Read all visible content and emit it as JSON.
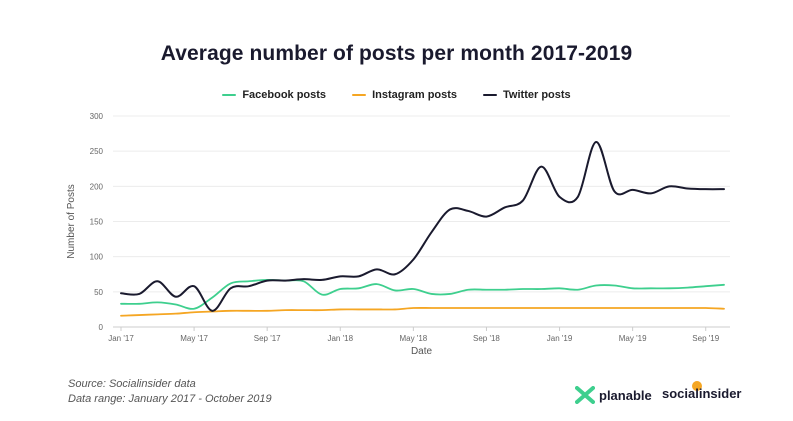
{
  "chart_data": {
    "type": "line",
    "title": "Average number of posts per month 2017-2019",
    "xlabel": "Date",
    "ylabel": "Number of Posts",
    "ylim": [
      0,
      300
    ],
    "yticks": [
      0,
      50,
      100,
      150,
      200,
      250,
      300
    ],
    "xtick_labels": [
      "Jan '17",
      "May '17",
      "Sep '17",
      "Jan '18",
      "May '18",
      "Sep '18",
      "Jan '19",
      "May '19",
      "Sep '19"
    ],
    "grid": "horizontal",
    "legend_position": "top-center",
    "x": [
      "2017-01",
      "2017-02",
      "2017-03",
      "2017-04",
      "2017-05",
      "2017-06",
      "2017-07",
      "2017-08",
      "2017-09",
      "2017-10",
      "2017-11",
      "2017-12",
      "2018-01",
      "2018-02",
      "2018-03",
      "2018-04",
      "2018-05",
      "2018-06",
      "2018-07",
      "2018-08",
      "2018-09",
      "2018-10",
      "2018-11",
      "2018-12",
      "2019-01",
      "2019-02",
      "2019-03",
      "2019-04",
      "2019-05",
      "2019-06",
      "2019-07",
      "2019-08",
      "2019-09",
      "2019-10"
    ],
    "series": [
      {
        "name": "Facebook posts",
        "color": "#3ecf8e",
        "values": [
          33,
          33,
          35,
          32,
          26,
          42,
          62,
          65,
          67,
          66,
          65,
          46,
          54,
          55,
          61,
          52,
          54,
          47,
          47,
          53,
          53,
          53,
          54,
          54,
          55,
          53,
          59,
          59,
          55,
          55,
          55,
          56,
          58,
          60
        ]
      },
      {
        "name": "Instagram posts",
        "color": "#f5a623",
        "values": [
          16,
          17,
          18,
          19,
          21,
          22,
          23,
          23,
          23,
          24,
          24,
          24,
          25,
          25,
          25,
          25,
          27,
          27,
          27,
          27,
          27,
          27,
          27,
          27,
          27,
          27,
          27,
          27,
          27,
          27,
          27,
          27,
          27,
          26
        ]
      },
      {
        "name": "Twitter posts",
        "color": "#1a1a2e",
        "values": [
          48,
          47,
          65,
          43,
          58,
          23,
          55,
          58,
          66,
          66,
          68,
          67,
          72,
          72,
          82,
          75,
          96,
          135,
          167,
          165,
          157,
          170,
          180,
          228,
          185,
          185,
          263,
          193,
          195,
          190,
          200,
          197,
          196,
          196
        ]
      }
    ]
  },
  "footer": {
    "source": "Source: Socialinsider data",
    "range": "Data range: January 2017 - October 2019"
  },
  "brands": {
    "planable": "planable",
    "socialinsider": "socialinsider"
  }
}
